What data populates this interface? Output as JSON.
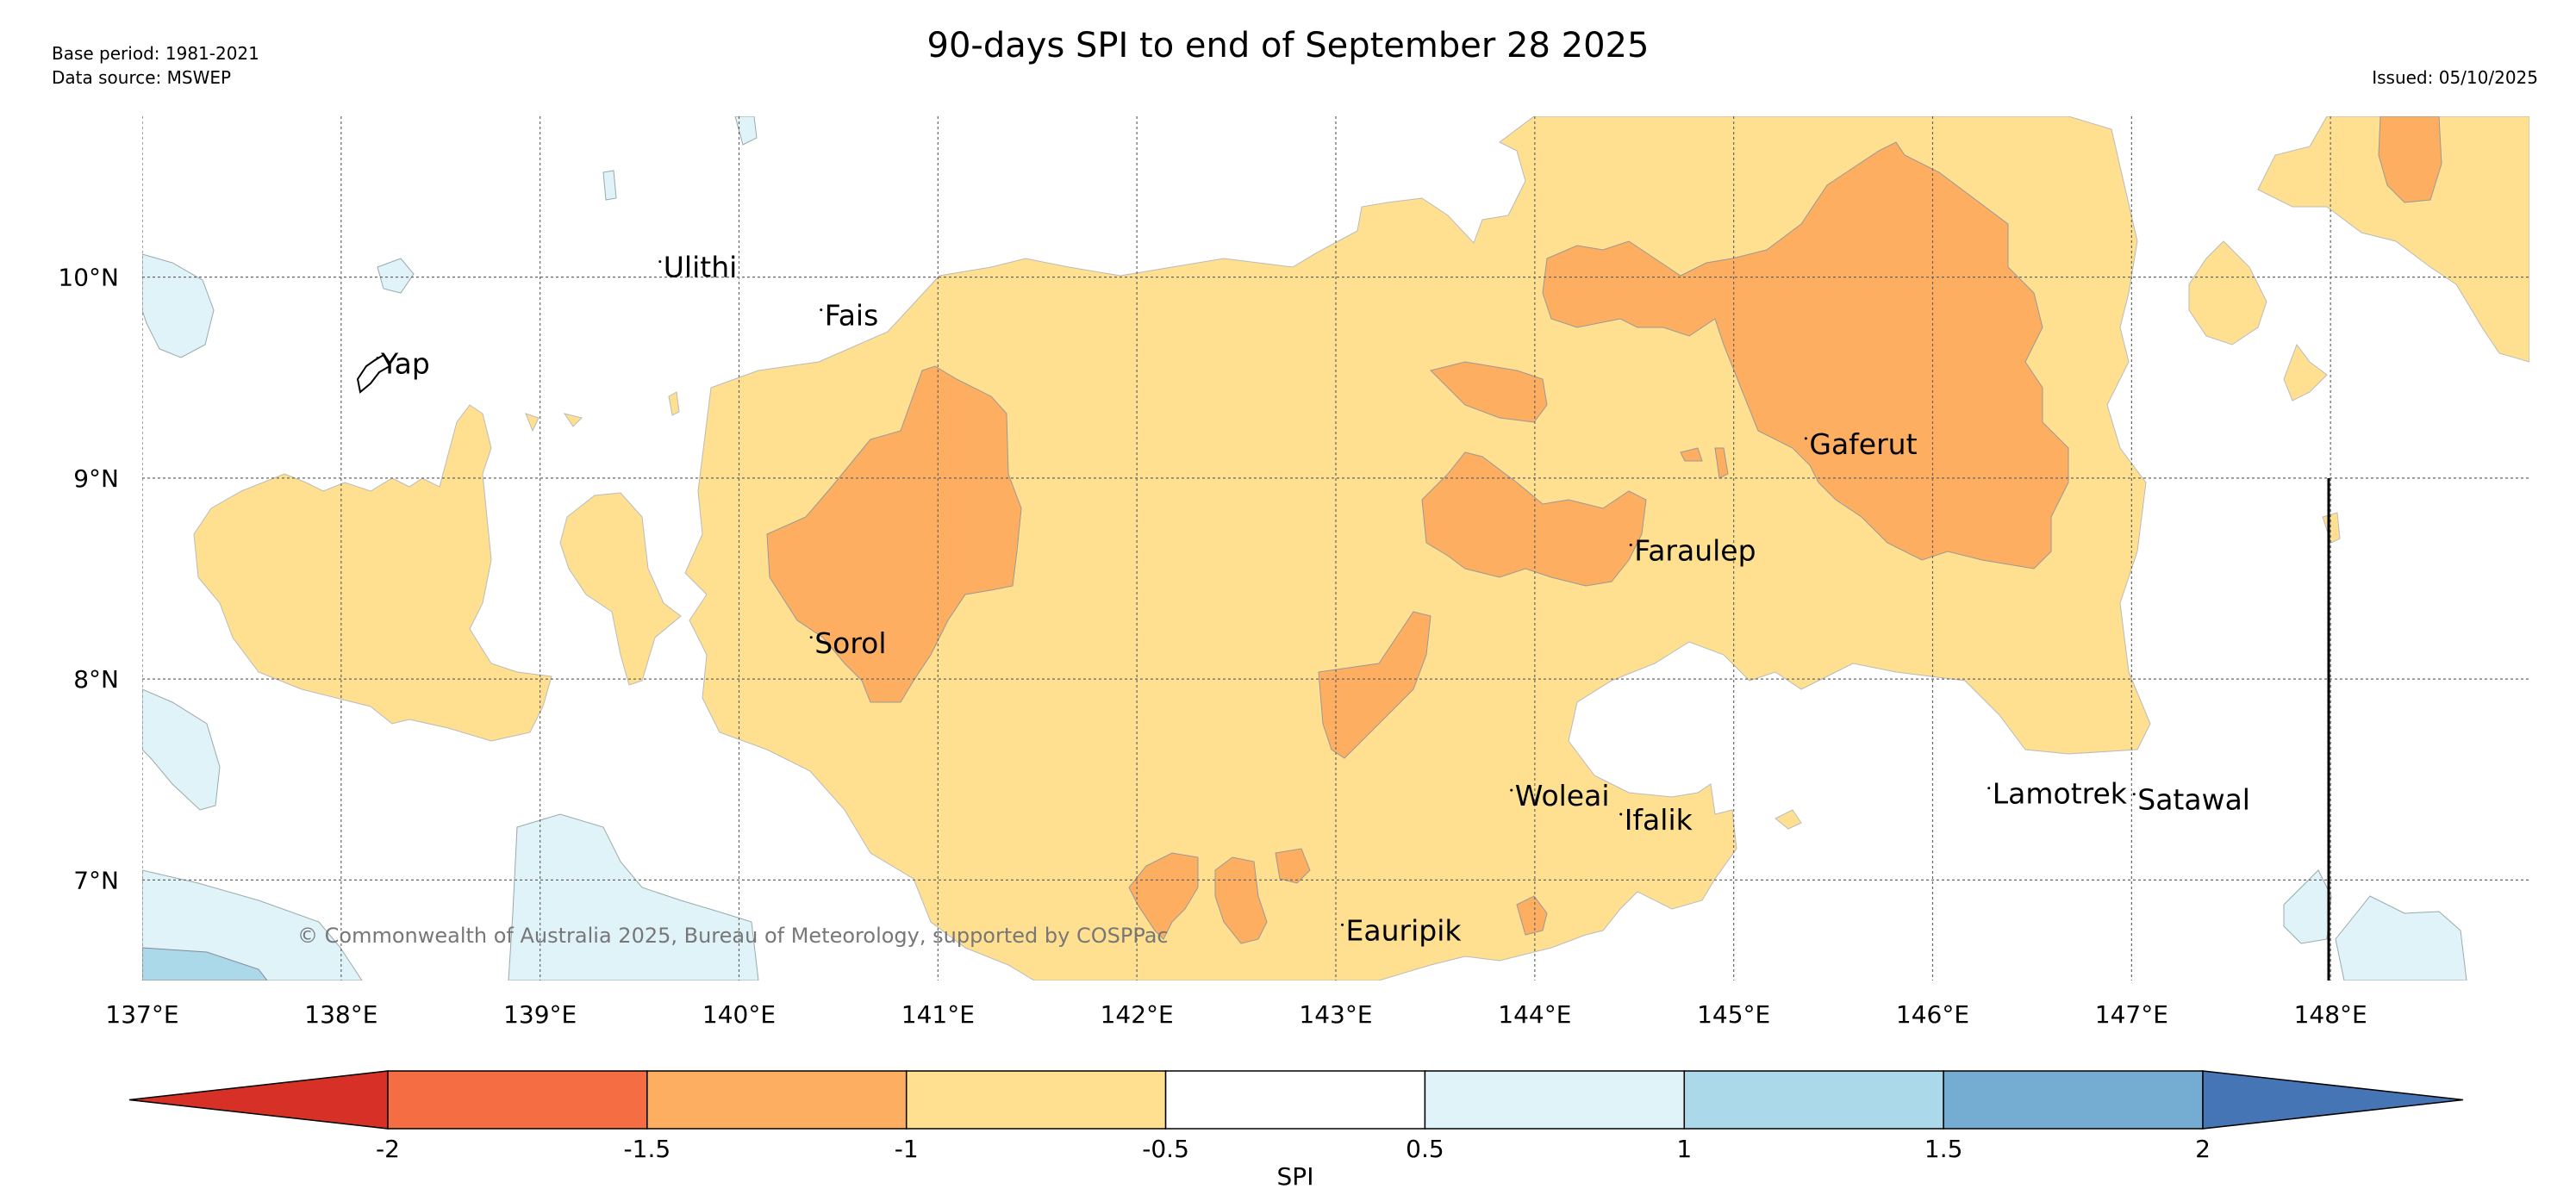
{
  "header": {
    "title": "90-days SPI to end of September 28 2025",
    "base_period": "Base period: 1981-2021",
    "data_source": "Data source: MSWEP",
    "issued": "Issued: 05/10/2025"
  },
  "map": {
    "lon_range": [
      137,
      149
    ],
    "lat_range": [
      6.5,
      10.8
    ],
    "lon_ticks": [
      "137°E",
      "138°E",
      "139°E",
      "140°E",
      "141°E",
      "142°E",
      "143°E",
      "144°E",
      "145°E",
      "146°E",
      "147°E",
      "148°E"
    ],
    "lat_ticks": [
      "10°N",
      "9°N",
      "8°N",
      "7°N"
    ],
    "grid": true,
    "copyright": "© Commonwealth of Australia 2025, Bureau of Meteorology, supported by COSPPac",
    "places": [
      {
        "name": "Yap",
        "lon": 138.2,
        "lat": 9.52
      },
      {
        "name": "Ulithi",
        "lon": 139.62,
        "lat": 10.0
      },
      {
        "name": "Fais",
        "lon": 140.43,
        "lat": 9.76
      },
      {
        "name": "Sorol",
        "lon": 140.38,
        "lat": 8.13
      },
      {
        "name": "Gaferut",
        "lon": 145.38,
        "lat": 9.12
      },
      {
        "name": "Faraulep",
        "lon": 144.5,
        "lat": 8.59
      },
      {
        "name": "Woleai",
        "lon": 143.9,
        "lat": 7.37
      },
      {
        "name": "Ifalik",
        "lon": 144.45,
        "lat": 7.25
      },
      {
        "name": "Lamotrek",
        "lon": 146.3,
        "lat": 7.38
      },
      {
        "name": "Satawal",
        "lon": 147.03,
        "lat": 7.35
      },
      {
        "name": "Eauripik",
        "lon": 143.05,
        "lat": 6.7
      }
    ]
  },
  "colorbar": {
    "label": "SPI",
    "ticks": [
      "-2",
      "-1.5",
      "-1",
      "-0.5",
      "0.5",
      "1",
      "1.5",
      "2"
    ],
    "colors": [
      "#d73027",
      "#f46d43",
      "#fdae61",
      "#fee090",
      "#ffffff",
      "#e0f3f8",
      "#abd9e9",
      "#74add1",
      "#4575b4"
    ]
  },
  "fill_colors": {
    "very_dry": "#fdae61",
    "dry": "#fee090",
    "wet": "#e0f3f8",
    "very_wet": "#abd9e9"
  }
}
